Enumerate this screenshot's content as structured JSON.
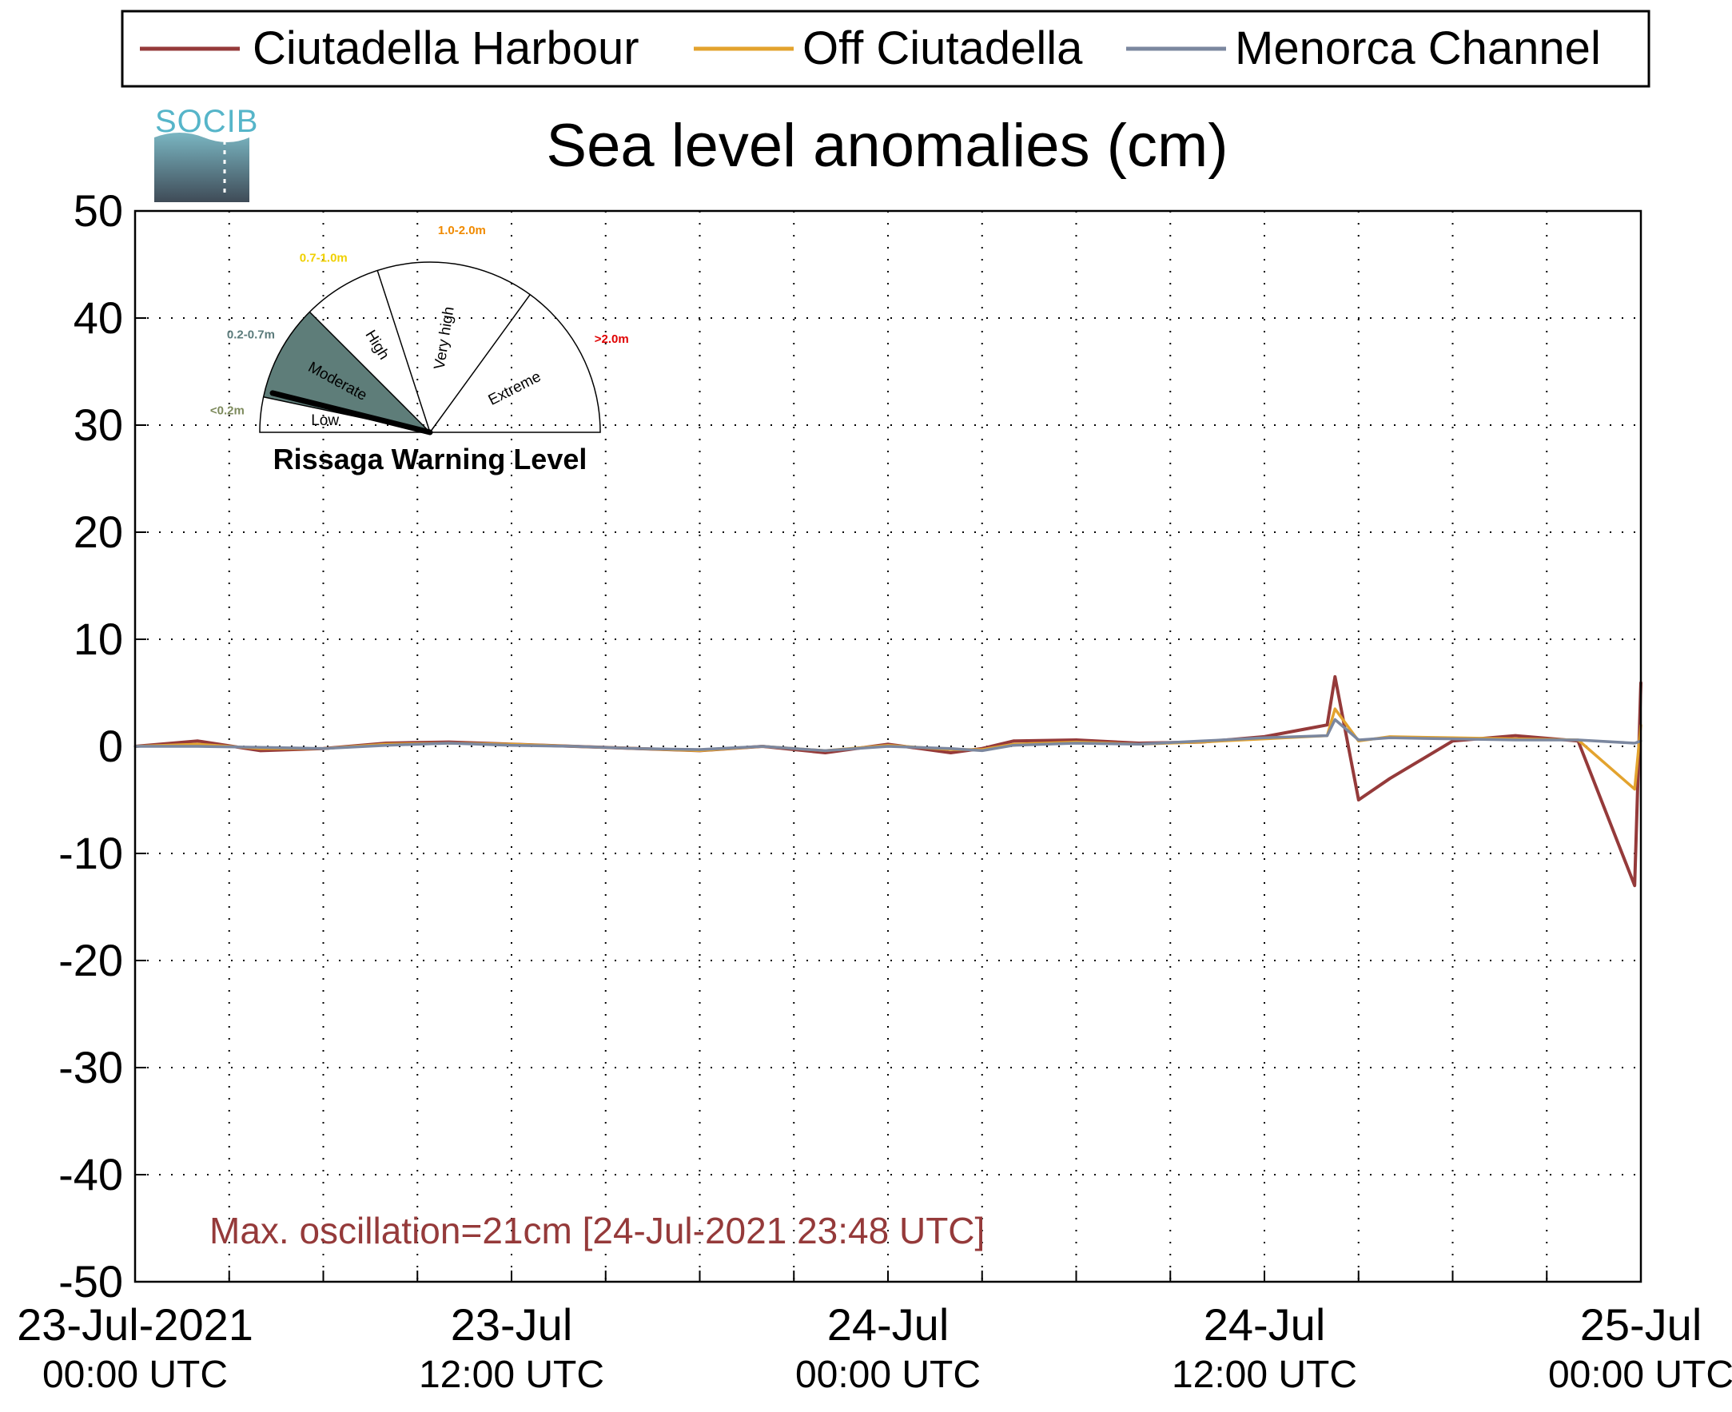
{
  "title": "Sea level anomalies (cm)",
  "logo": {
    "text": "SOCIB"
  },
  "legend": [
    {
      "label": "Ciutadella Harbour",
      "color": "#953a3a"
    },
    {
      "label": "Off Ciutadella",
      "color": "#e3a32e"
    },
    {
      "label": "Menorca Channel",
      "color": "#7b879f"
    }
  ],
  "annotation": "Max. oscillation=21cm [24-Jul-2021 23:48 UTC]",
  "gauge": {
    "title": "Rissaga Warning Level",
    "level": "Moderate",
    "sectors": [
      {
        "name": "Low",
        "range": "<0.2m",
        "range_color": "#7d8a5c"
      },
      {
        "name": "Moderate",
        "range": "0.2-0.7m",
        "range_color": "#5b7b7b"
      },
      {
        "name": "High",
        "range": "0.7-1.0m",
        "range_color": "#f0d000"
      },
      {
        "name": "Very high",
        "range": "1.0-2.0m",
        "range_color": "#f08a00"
      },
      {
        "name": "Extreme",
        "range": ">2.0m",
        "range_color": "#e00000"
      }
    ],
    "fill_color": "#5e7d79"
  },
  "chart_data": {
    "type": "line",
    "title": "Sea level anomalies (cm)",
    "ylabel": "",
    "xlabel": "",
    "ylim": [
      -50,
      50
    ],
    "yticks": [
      50,
      40,
      30,
      20,
      10,
      0,
      -10,
      -20,
      -30,
      -40,
      -50
    ],
    "xlim": [
      "2021-07-23 00:00",
      "2021-07-25 00:00"
    ],
    "xticks": [
      {
        "date": "23-Jul-2021",
        "time": "00:00 UTC"
      },
      {
        "date": "23-Jul",
        "time": "12:00 UTC"
      },
      {
        "date": "24-Jul",
        "time": "00:00 UTC"
      },
      {
        "date": "24-Jul",
        "time": "12:00 UTC"
      },
      {
        "date": "25-Jul",
        "time": "00:00 UTC"
      }
    ],
    "grid": true,
    "legend_position": "top",
    "x": [
      "2021-07-23 00:00",
      "2021-07-23 02:00",
      "2021-07-23 04:00",
      "2021-07-23 06:00",
      "2021-07-23 08:00",
      "2021-07-23 10:00",
      "2021-07-23 12:00",
      "2021-07-23 14:00",
      "2021-07-23 16:00",
      "2021-07-23 18:00",
      "2021-07-23 20:00",
      "2021-07-23 22:00",
      "2021-07-24 00:00",
      "2021-07-24 02:00",
      "2021-07-24 03:00",
      "2021-07-24 04:00",
      "2021-07-24 06:00",
      "2021-07-24 08:00",
      "2021-07-24 10:00",
      "2021-07-24 12:00",
      "2021-07-24 14:00",
      "2021-07-24 14:15",
      "2021-07-24 15:00",
      "2021-07-24 16:00",
      "2021-07-24 18:00",
      "2021-07-24 20:00",
      "2021-07-24 22:00",
      "2021-07-24 23:48",
      "2021-07-25 00:00"
    ],
    "series": [
      {
        "name": "Ciutadella Harbour",
        "values": [
          0.0,
          0.5,
          -0.4,
          -0.2,
          0.3,
          0.4,
          0.2,
          0.0,
          -0.2,
          -0.4,
          0.0,
          -0.6,
          0.2,
          -0.6,
          -0.2,
          0.5,
          0.6,
          0.3,
          0.4,
          0.9,
          2.0,
          6.5,
          -5.0,
          -3.0,
          0.5,
          1.0,
          0.5,
          -13.0,
          6.0
        ]
      },
      {
        "name": "Off Ciutadella",
        "values": [
          0.0,
          0.2,
          -0.2,
          -0.2,
          0.2,
          0.3,
          0.2,
          0.0,
          -0.2,
          -0.4,
          0.0,
          -0.4,
          0.1,
          -0.3,
          -0.3,
          0.2,
          0.4,
          0.2,
          0.4,
          0.7,
          1.0,
          3.5,
          0.5,
          0.9,
          0.8,
          0.7,
          0.6,
          -4.0,
          2.0
        ]
      },
      {
        "name": "Menorca Channel",
        "values": [
          0.0,
          0.0,
          -0.1,
          -0.2,
          0.1,
          0.3,
          0.1,
          0.0,
          -0.2,
          -0.3,
          0.0,
          -0.4,
          0.0,
          -0.2,
          -0.4,
          0.1,
          0.3,
          0.2,
          0.5,
          0.8,
          1.0,
          2.5,
          0.6,
          0.8,
          0.7,
          0.6,
          0.6,
          0.3,
          0.5
        ]
      }
    ]
  }
}
